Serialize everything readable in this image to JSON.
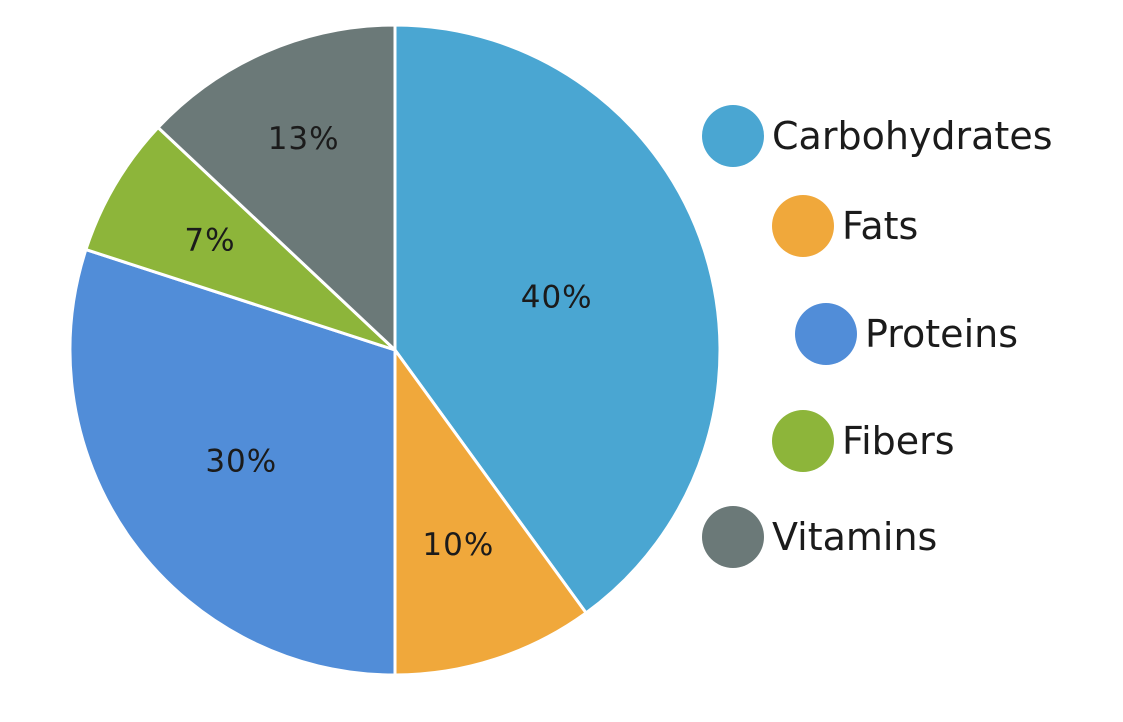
{
  "chart_data": {
    "type": "pie",
    "title": "",
    "slices": [
      {
        "label": "Carbohydrates",
        "value": 40,
        "value_label": "40%",
        "color": "#4aa6d2"
      },
      {
        "label": "Fats",
        "value": 10,
        "value_label": "10%",
        "color": "#f0a83b"
      },
      {
        "label": "Proteins",
        "value": 30,
        "value_label": "30%",
        "color": "#518dd8"
      },
      {
        "label": "Fibers",
        "value": 7,
        "value_label": "7%",
        "color": "#8db53a"
      },
      {
        "label": "Vitamins",
        "value": 13,
        "value_label": "13%",
        "color": "#6b7978"
      }
    ],
    "start_angle": "12 o'clock",
    "direction": "clockwise",
    "legend": "right"
  }
}
